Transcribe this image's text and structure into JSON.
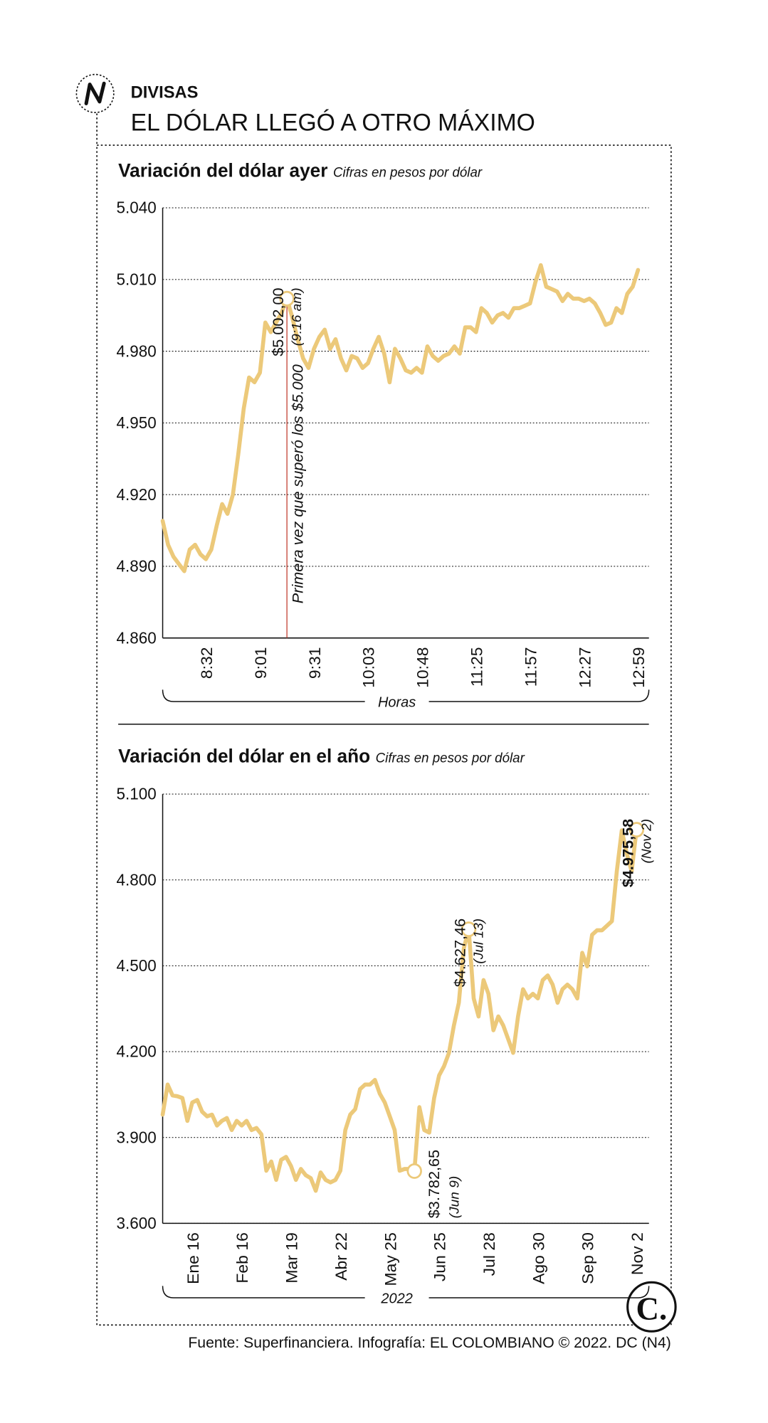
{
  "header": {
    "section": "DIVISAS",
    "title": "EL DÓLAR LLEGÓ A OTRO MÁXIMO"
  },
  "chart_data": [
    {
      "type": "line",
      "title": "Variación del dólar ayer",
      "subtitle": "Cifras en pesos por dólar",
      "xlabel": "Horas",
      "color": "#ecc97a",
      "grid": true,
      "annotation": "Primera vez que superó los $5.000",
      "x": [
        0,
        1,
        2,
        3,
        4,
        5,
        6,
        7,
        8,
        9,
        10,
        11,
        12,
        13,
        14,
        15,
        16,
        17,
        18,
        19,
        20,
        21,
        22,
        23,
        24,
        25,
        26,
        27,
        28,
        29,
        30,
        31,
        32,
        33,
        34,
        35,
        36,
        37,
        38,
        39,
        40,
        41,
        42,
        43,
        44,
        45,
        46,
        47,
        48,
        49,
        50,
        51,
        52,
        53,
        54,
        55,
        56,
        57,
        58,
        59,
        60,
        61,
        62,
        63,
        64,
        65,
        66,
        67,
        68,
        69,
        70,
        71,
        72,
        73,
        74,
        75,
        76,
        77,
        78,
        79,
        80,
        81,
        82,
        83,
        84,
        85,
        86,
        87,
        88
      ],
      "values": [
        4909,
        4899,
        4894,
        4891,
        4888,
        4897,
        4899,
        4895,
        4893,
        4897,
        4907,
        4916,
        4912,
        4920,
        4937,
        4956,
        4969,
        4967,
        4971,
        4992,
        4988,
        4992,
        4996,
        5002,
        4994,
        4985,
        4977,
        4973,
        4981,
        4986,
        4989,
        4981,
        4985,
        4977,
        4972,
        4978,
        4977,
        4973,
        4975,
        4981,
        4986,
        4979,
        4967,
        4981,
        4977,
        4972,
        4971,
        4973,
        4971,
        4982,
        4978,
        4976,
        4978,
        4979,
        4982,
        4979,
        4990,
        4990,
        4988,
        4998,
        4996,
        4992,
        4995,
        4996,
        4994,
        4998,
        4998,
        4999,
        5000,
        5009,
        5016,
        5007,
        5006,
        5005,
        5001,
        5004,
        5002,
        5002,
        5001,
        5002,
        5000,
        4996,
        4991,
        4992,
        4998,
        4996,
        5004,
        5007,
        5014
      ],
      "highlights": [
        {
          "x": 23,
          "label": "$5.002,00",
          "note": "(9:16 am)"
        }
      ],
      "xlim": [
        0,
        90
      ],
      "xticks": [
        {
          "value": 8,
          "label": "8:32"
        },
        {
          "value": 18,
          "label": "9:01"
        },
        {
          "value": 28,
          "label": "9:31"
        },
        {
          "value": 38,
          "label": "10:03"
        },
        {
          "value": 48,
          "label": "10:48"
        },
        {
          "value": 58,
          "label": "11:25"
        },
        {
          "value": 68,
          "label": "11:57"
        },
        {
          "value": 78,
          "label": "12:27"
        },
        {
          "value": 88,
          "label": "12:59"
        }
      ],
      "ylim": [
        4860,
        5040
      ],
      "yticks": [
        {
          "value": 4860,
          "label": "4.860"
        },
        {
          "value": 4890,
          "label": "4.890"
        },
        {
          "value": 4920,
          "label": "4.920"
        },
        {
          "value": 4950,
          "label": "4.950"
        },
        {
          "value": 4980,
          "label": "4.980"
        },
        {
          "value": 5010,
          "label": "5.010"
        },
        {
          "value": 5040,
          "label": "5.040"
        }
      ]
    },
    {
      "type": "line",
      "title": "Variación del dólar en el año",
      "subtitle": "Cifras en pesos por dólar",
      "xlabel": "2022",
      "color": "#ecc97a",
      "grid": true,
      "x": [
        0,
        1,
        2,
        3,
        4,
        5,
        6,
        7,
        8,
        9,
        10,
        11,
        12,
        13,
        14,
        15,
        16,
        17,
        18,
        19,
        20,
        21,
        22,
        23,
        24,
        25,
        26,
        27,
        28,
        29,
        30,
        31,
        32,
        33,
        34,
        35,
        36,
        37,
        38,
        39,
        40,
        41,
        42,
        43,
        44,
        45,
        46,
        47,
        48,
        49,
        50,
        51,
        52,
        53,
        54,
        55,
        56,
        57,
        58,
        59,
        60,
        61,
        62,
        63,
        64,
        65,
        66,
        67,
        68,
        69,
        70,
        71,
        72,
        73,
        74,
        75,
        76,
        77,
        78,
        79,
        80,
        81,
        82,
        83,
        84,
        85,
        86,
        87,
        88,
        89,
        90,
        91,
        92,
        93,
        94,
        95,
        96
      ],
      "values": [
        3980,
        4085,
        4047,
        4044,
        4038,
        3958,
        4022,
        4031,
        3990,
        3974,
        3980,
        3942,
        3958,
        3968,
        3926,
        3958,
        3942,
        3958,
        3926,
        3933,
        3911,
        3784,
        3816,
        3752,
        3822,
        3832,
        3800,
        3752,
        3790,
        3768,
        3758,
        3714,
        3778,
        3752,
        3743,
        3752,
        3784,
        3926,
        3980,
        3999,
        4069,
        4085,
        4085,
        4101,
        4053,
        4022,
        3974,
        3926,
        3784,
        3790,
        3790,
        3782.65,
        4006,
        3926,
        3917,
        4038,
        4117,
        4149,
        4196,
        4291,
        4371,
        4561,
        4627.46,
        4386,
        4323,
        4450,
        4402,
        4275,
        4323,
        4291,
        4244,
        4196,
        4323,
        4418,
        4386,
        4402,
        4386,
        4450,
        4466,
        4434,
        4371,
        4418,
        4434,
        4418,
        4386,
        4545,
        4498,
        4608,
        4624,
        4624,
        4640,
        4656,
        4830,
        4973,
        4894,
        4830,
        4975.58
      ],
      "highlights": [
        {
          "x": 51,
          "label": "$3.782,65",
          "note": "(Jun 9)"
        },
        {
          "x": 62,
          "label": "$4.627,46",
          "note": "(Jul 13)"
        },
        {
          "x": 96,
          "label": "$4.975,58",
          "note": "(Nov 2)"
        }
      ],
      "xlim": [
        0,
        98.5
      ],
      "xticks": [
        {
          "value": 6,
          "label": "Ene 16"
        },
        {
          "value": 16,
          "label": "Feb 16"
        },
        {
          "value": 26,
          "label": "Mar 19"
        },
        {
          "value": 36,
          "label": "Abr 22"
        },
        {
          "value": 46,
          "label": "May 25"
        },
        {
          "value": 56,
          "label": "Jun 25"
        },
        {
          "value": 66,
          "label": "Jul 28"
        },
        {
          "value": 76,
          "label": "Ago 30"
        },
        {
          "value": 86,
          "label": "Sep 30"
        },
        {
          "value": 96,
          "label": "Nov 2"
        }
      ],
      "ylim": [
        3600,
        5100
      ],
      "yticks": [
        {
          "value": 3600,
          "label": "3.600"
        },
        {
          "value": 3900,
          "label": "3.900"
        },
        {
          "value": 4200,
          "label": "4.200"
        },
        {
          "value": 4500,
          "label": "4.500"
        },
        {
          "value": 4800,
          "label": "4.800"
        },
        {
          "value": 5100,
          "label": "5.100"
        }
      ]
    }
  ],
  "brand_mark": "C.",
  "source": "Fuente: Superfinanciera. Infografía: EL COLOMBIANO © 2022. DC (N4)"
}
